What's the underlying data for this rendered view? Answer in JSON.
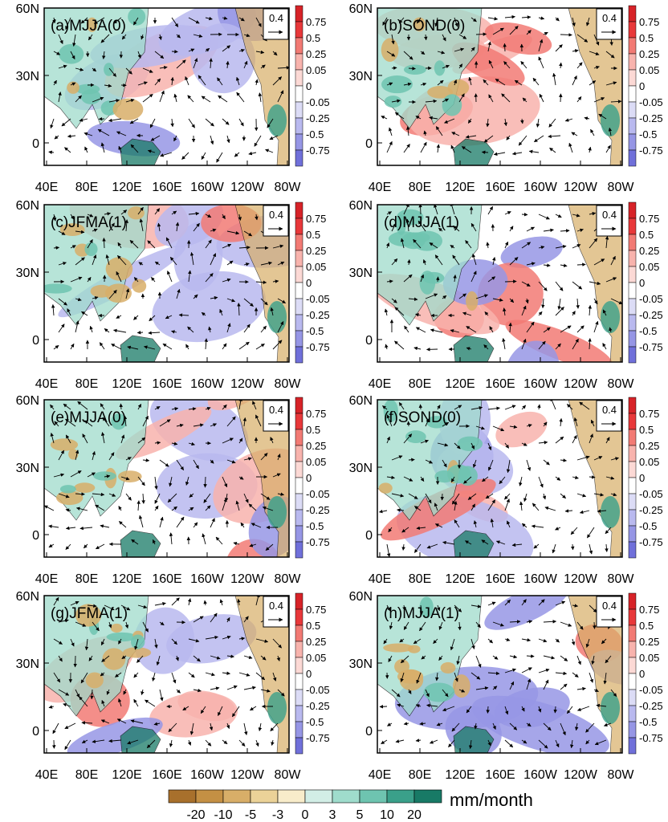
{
  "chart_data": {
    "type": "heatmap",
    "layout": "4x2 grid of map panels",
    "x_ticks": [
      "40E",
      "80E",
      "120E",
      "160E",
      "160W",
      "120W",
      "80W"
    ],
    "y_ticks": [
      "60N",
      "30N",
      "0"
    ],
    "panel_colorbar": {
      "levels": [
        "0.75",
        "0.5",
        "0.25",
        "0.05",
        "0",
        "-0.05",
        "-0.25",
        "-0.5",
        "-0.75"
      ],
      "colors": [
        "#e8383a",
        "#f27a74",
        "#f8b3ad",
        "#fcd9d5",
        "#ffffff",
        "#dcdcf6",
        "#b9b9ef",
        "#9696e5",
        "#7070da"
      ]
    },
    "vector_reference": "0.4",
    "bottom_colorbar": {
      "labels": [
        "-20",
        "-10",
        "-5",
        "-3",
        "0",
        "3",
        "5",
        "10",
        "20"
      ],
      "colors": [
        "#a8702c",
        "#c49044",
        "#d8ae68",
        "#ebd298",
        "#f8ecca",
        "#d2eee6",
        "#9fdccc",
        "#6ec4b0",
        "#3aa08a",
        "#187a66"
      ],
      "unit": "mm/month"
    },
    "panels": [
      {
        "label": "(a)MJJA(0)"
      },
      {
        "label": "(b)SOND(0)"
      },
      {
        "label": "(c)JFMA(1)"
      },
      {
        "label": "(d)MJJA(1)"
      },
      {
        "label": "(e)MJJA(0)"
      },
      {
        "label": "(f)SOND(0)"
      },
      {
        "label": "(g)JFMA(1)"
      },
      {
        "label": "(h)MJJA(1)"
      }
    ],
    "colors": {
      "ocean_pos": "#f8b3ad",
      "ocean_neg": "#b9b9ef",
      "land_wet": "#9fdccc",
      "land_dry": "#d8ae68"
    }
  }
}
